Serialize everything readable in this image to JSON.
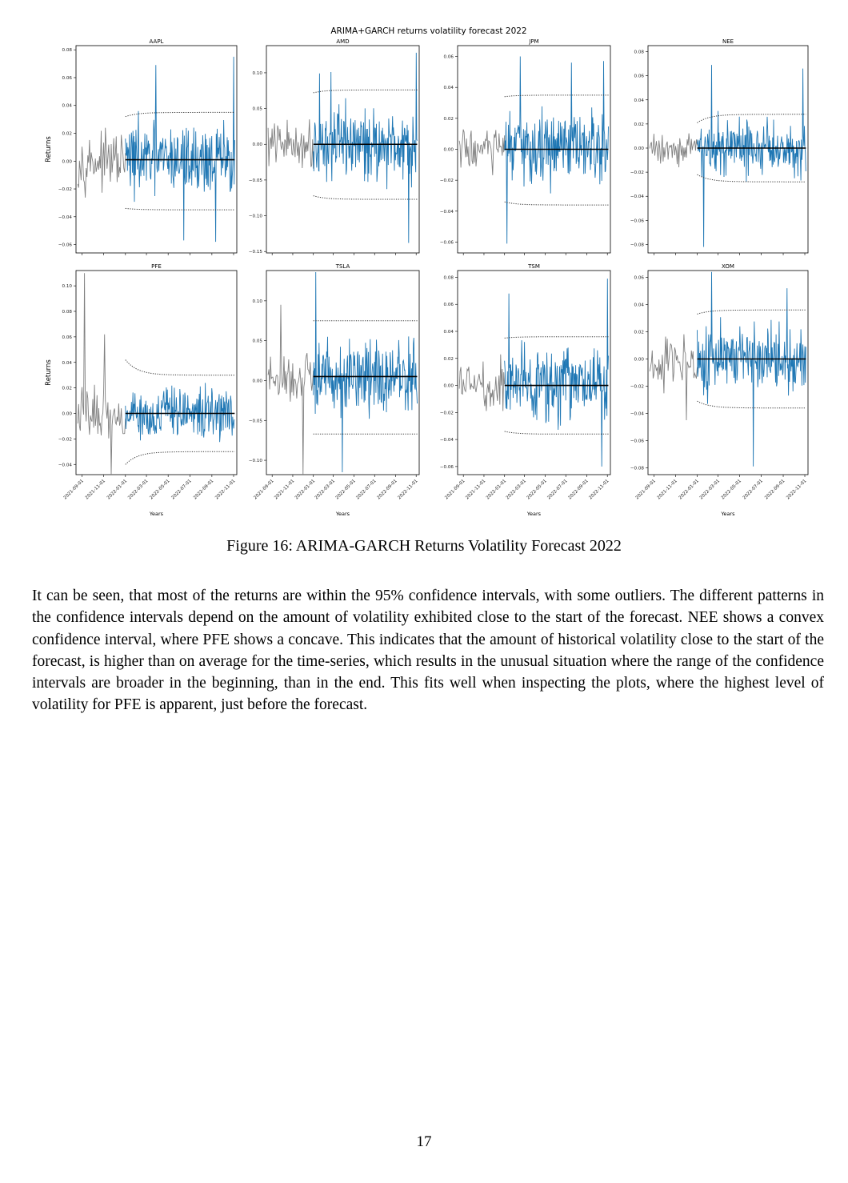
{
  "figure": {
    "suptitle": "ARIMA+GARCH returns volatility forecast 2022",
    "ylabel": "Returns",
    "xlabel": "Years"
  },
  "chart_data": [
    {
      "type": "line",
      "title": "AAPL",
      "ylim": [
        -0.066,
        0.083
      ],
      "yticks": [
        -0.06,
        -0.04,
        -0.02,
        0.0,
        0.02,
        0.04,
        0.06,
        0.08
      ],
      "ytick_labels": [
        "−0.06",
        "−0.04",
        "−0.02",
        "0.00",
        "0.02",
        "0.04",
        "0.06",
        "0.08"
      ],
      "mean": 0.001,
      "ci_start": [
        -0.034,
        0.032
      ],
      "ci_end": [
        -0.035,
        0.035
      ],
      "hist_amp": 0.018,
      "fc_amp": 0.024,
      "extremes": {
        "15": 0.069,
        "29": -0.057,
        "45": -0.058,
        "54": 0.075
      },
      "series": [
        {
          "name": "",
          "values": []
        }
      ]
    },
    {
      "type": "line",
      "title": "AMD",
      "ylim": [
        -0.152,
        0.138
      ],
      "yticks": [
        -0.15,
        -0.1,
        -0.05,
        0.0,
        0.05,
        0.1
      ],
      "ytick_labels": [
        "−0.15",
        "−0.10",
        "−0.05",
        "0.00",
        "0.05",
        "0.10"
      ],
      "mean": 0.0,
      "ci_start": [
        -0.072,
        0.072
      ],
      "ci_end": [
        -0.077,
        0.076
      ],
      "hist_amp": 0.032,
      "fc_amp": 0.046,
      "extremes": {
        "3": 0.099,
        "9": 0.101,
        "50": -0.138,
        "54": 0.128
      },
      "series": [
        {
          "name": "",
          "values": []
        }
      ]
    },
    {
      "type": "line",
      "title": "JPM",
      "ylim": [
        -0.067,
        0.067
      ],
      "yticks": [
        -0.06,
        -0.04,
        -0.02,
        0.0,
        0.02,
        0.04,
        0.06
      ],
      "ytick_labels": [
        "−0.06",
        "−0.04",
        "−0.02",
        "0.00",
        "0.02",
        "0.04",
        "0.06"
      ],
      "mean": 0.0,
      "ci_start": [
        -0.034,
        0.034
      ],
      "ci_end": [
        -0.036,
        0.035
      ],
      "hist_amp": 0.016,
      "fc_amp": 0.022,
      "extremes": {
        "1": -0.061,
        "8": 0.06,
        "35": 0.056,
        "52": 0.057
      },
      "series": [
        {
          "name": "",
          "values": []
        }
      ]
    },
    {
      "type": "line",
      "title": "NEE",
      "ylim": [
        -0.087,
        0.085
      ],
      "yticks": [
        -0.08,
        -0.06,
        -0.04,
        -0.02,
        0.0,
        0.02,
        0.04,
        0.06,
        0.08
      ],
      "ytick_labels": [
        "−0.08",
        "−0.06",
        "−0.04",
        "−0.02",
        "0.00",
        "0.02",
        "0.04",
        "0.06",
        "0.08"
      ],
      "mean": 0.0,
      "ci_start": [
        -0.022,
        0.021
      ],
      "ci_end": [
        -0.028,
        0.028
      ],
      "hist_amp": 0.013,
      "fc_amp": 0.023,
      "extremes": {
        "3": -0.082,
        "7": 0.069,
        "53": 0.066
      },
      "series": [
        {
          "name": "",
          "values": []
        }
      ]
    },
    {
      "type": "line",
      "title": "PFE",
      "ylim": [
        -0.048,
        0.112
      ],
      "yticks": [
        -0.04,
        -0.02,
        0.0,
        0.02,
        0.04,
        0.06,
        0.08,
        0.1
      ],
      "ytick_labels": [
        "−0.04",
        "−0.02",
        "0.00",
        "0.02",
        "0.04",
        "0.06",
        "0.08",
        "0.10"
      ],
      "mean": 0.0,
      "ci_start": [
        -0.04,
        0.042
      ],
      "ci_end": [
        -0.03,
        0.03
      ],
      "hist_amp": 0.02,
      "fc_amp": 0.018,
      "extremes": {
        "-12": 0.11,
        "-6": 0.062,
        "-4": -0.051
      },
      "series": [
        {
          "name": "",
          "values": []
        }
      ]
    },
    {
      "type": "line",
      "title": "TSLA",
      "ylim": [
        -0.118,
        0.138
      ],
      "yticks": [
        -0.1,
        -0.05,
        0.0,
        0.05,
        0.1
      ],
      "ytick_labels": [
        "−0.10",
        "−0.05",
        "0.00",
        "0.05",
        "0.10"
      ],
      "mean": 0.005,
      "ci_start": [
        -0.067,
        0.075
      ],
      "ci_end": [
        -0.067,
        0.075
      ],
      "hist_amp": 0.03,
      "fc_amp": 0.045,
      "extremes": {
        "-10": 0.095,
        "-3": -0.118,
        "1": 0.136,
        "15": -0.115
      },
      "series": [
        {
          "name": "",
          "values": []
        }
      ]
    },
    {
      "type": "line",
      "title": "TSM",
      "ylim": [
        -0.066,
        0.085
      ],
      "yticks": [
        -0.06,
        -0.04,
        -0.02,
        0.0,
        0.02,
        0.04,
        0.06,
        0.08
      ],
      "ytick_labels": [
        "−0.06",
        "−0.04",
        "−0.02",
        "0.00",
        "0.02",
        "0.04",
        "0.06",
        "0.08"
      ],
      "mean": 0.0,
      "ci_start": [
        -0.034,
        0.035
      ],
      "ci_end": [
        -0.036,
        0.036
      ],
      "hist_amp": 0.018,
      "fc_amp": 0.026,
      "extremes": {
        "2": 0.068,
        "51": -0.06,
        "54": 0.079
      },
      "series": [
        {
          "name": "",
          "values": []
        }
      ]
    },
    {
      "type": "line",
      "title": "XOM",
      "ylim": [
        -0.085,
        0.065
      ],
      "yticks": [
        -0.08,
        -0.06,
        -0.04,
        -0.02,
        0.0,
        0.02,
        0.04,
        0.06
      ],
      "ytick_labels": [
        "−0.08",
        "−0.06",
        "−0.04",
        "−0.02",
        "0.00",
        "0.02",
        "0.04",
        "0.06"
      ],
      "mean": 0.0,
      "ci_start": [
        -0.031,
        0.033
      ],
      "ci_end": [
        -0.036,
        0.036
      ],
      "hist_amp": 0.018,
      "fc_amp": 0.024,
      "extremes": {
        "-3": -0.045,
        "7": 0.064,
        "28": -0.079,
        "45": 0.052
      },
      "series": [
        {
          "name": "",
          "values": []
        }
      ]
    }
  ],
  "x_axis": {
    "range": [
      "2021-08-15",
      "2022-11-10"
    ],
    "forecast_start": "2022-01-01",
    "ticks": [
      "2021-09-01",
      "2021-11-01",
      "2022-01-01",
      "2022-03-01",
      "2022-05-01",
      "2022-07-01",
      "2022-09-01",
      "2022-11-01"
    ]
  },
  "colors": {
    "history": "#808080",
    "forecast": "#1f77b4",
    "mean": "#000000",
    "ci": "#333333"
  },
  "caption": "Figure 16: ARIMA-GARCH Returns Volatility Forecast 2022",
  "paragraph": "It can be seen, that most of the returns are within the 95% confidence intervals, with some outliers. The different patterns in the confidence intervals depend on the amount of volatility exhibited close to the start of the forecast. NEE shows a convex confidence interval, where PFE shows a concave. This indi­cates that the amount of historical volatility close to the start of the forecast, is higher than on average for the time-series, which results in the unusual situation where the range of the confidence intervals are broader in the beginning, than in the end. This fits well when inspecting the plots, where the highest level of volatility for PFE is apparent, just before the forecast.",
  "page_number": "17"
}
